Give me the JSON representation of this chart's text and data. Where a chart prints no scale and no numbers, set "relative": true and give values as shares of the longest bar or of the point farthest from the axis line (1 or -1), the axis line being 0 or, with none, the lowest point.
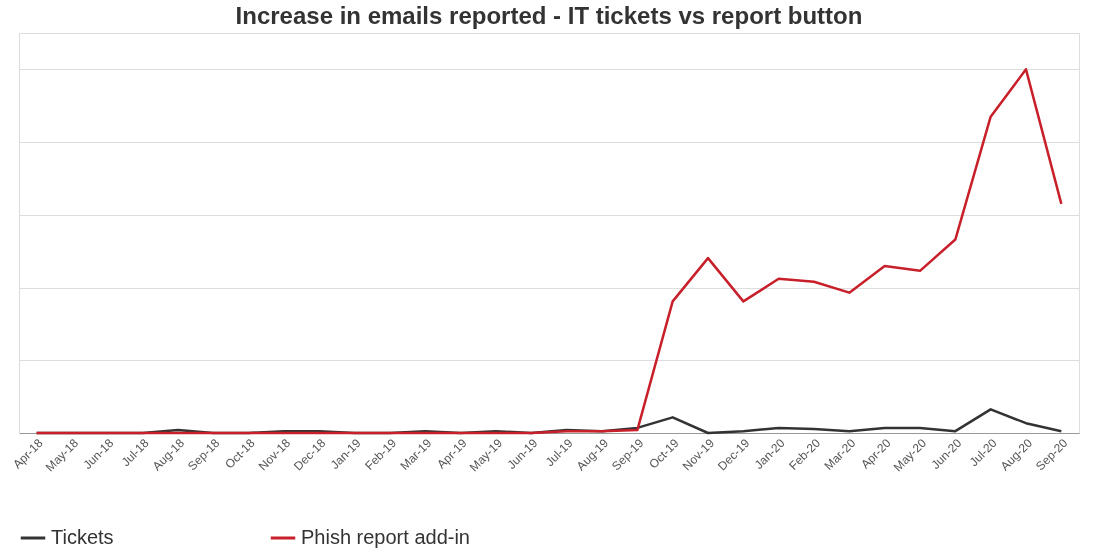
{
  "chart_data": {
    "type": "line",
    "title": "Increase in emails reported - IT tickets vs report button",
    "categories": [
      "Apr-18",
      "May-18",
      "Jun-18",
      "Jul-18",
      "Aug-18",
      "Sep-18",
      "Oct-18",
      "Nov-18",
      "Dec-18",
      "Jan-19",
      "Feb-19",
      "Mar-19",
      "Apr-19",
      "May-19",
      "Jun-19",
      "Jul-19",
      "Aug-19",
      "Sep-19",
      "Oct-19",
      "Nov-19",
      "Dec-19",
      "Jan-20",
      "Feb-20",
      "Mar-20",
      "Apr-20",
      "May-20",
      "Jun-20",
      "Jul-20",
      "Aug-20",
      "Sep-20"
    ],
    "relative": true,
    "series": [
      {
        "name": "Tickets",
        "color": "#333333",
        "values": [
          0,
          0,
          0,
          0,
          0.008,
          0,
          0,
          0.005,
          0.005,
          0,
          0,
          0.005,
          0,
          0.005,
          0,
          0.008,
          0.005,
          0.014,
          0.043,
          0,
          0.005,
          0.014,
          0.011,
          0.005,
          0.014,
          0.014,
          0.005,
          0.065,
          0.027,
          0.005
        ]
      },
      {
        "name": "Phish report add-in",
        "color": "#c8202a",
        "values": [
          0,
          0,
          0,
          0,
          0,
          0,
          0,
          0,
          0,
          0,
          0,
          0,
          0,
          0,
          0,
          0.005,
          0.005,
          0.008,
          0.362,
          0.481,
          0.362,
          0.424,
          0.416,
          0.386,
          0.459,
          0.446,
          0.532,
          0.87,
          1.0,
          0.63
        ]
      }
    ],
    "grid": "y",
    "legend": "bottom",
    "line_style": "solid",
    "marker": "none"
  }
}
